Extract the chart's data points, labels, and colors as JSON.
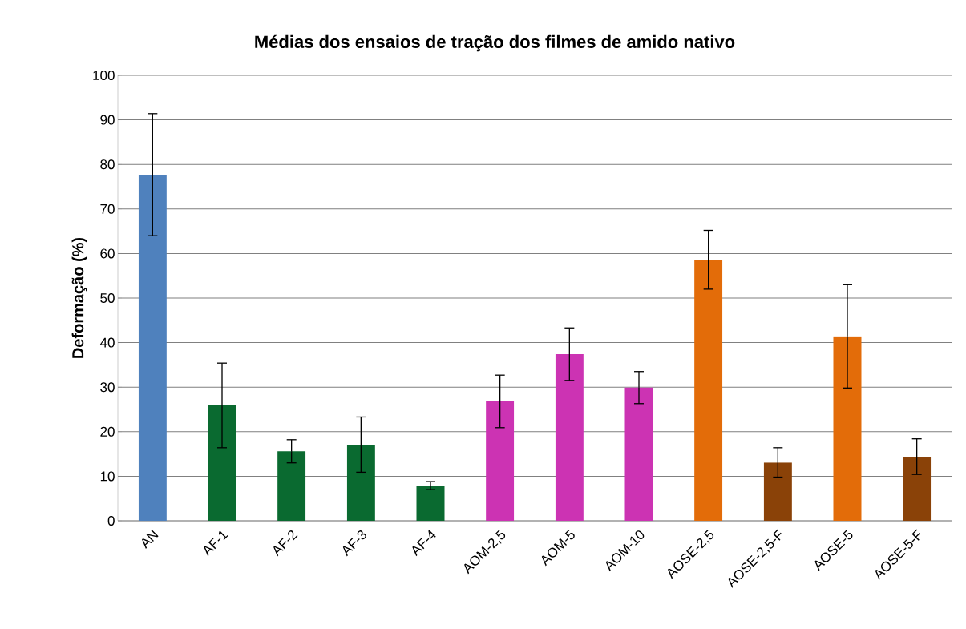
{
  "chart_data": {
    "type": "bar",
    "title": "Médias dos ensaios de tração dos filmes de amido nativo",
    "ylabel": "Deformação (%)",
    "categories": [
      "AN",
      "AF-1",
      "AF-2",
      "AF-3",
      "AF-4",
      "AOM-2,5",
      "AOM-5",
      "AOM-10",
      "AOSE-2,5",
      "AOSE-2,5-F",
      "AOSE-5",
      "AOSE-5-F"
    ],
    "values": [
      77.7,
      25.9,
      15.6,
      17.1,
      7.9,
      26.8,
      37.4,
      29.9,
      58.6,
      13.1,
      41.4,
      14.4
    ],
    "errors": [
      13.7,
      9.5,
      2.6,
      6.2,
      0.9,
      5.9,
      5.9,
      3.6,
      6.6,
      3.3,
      11.6,
      4.0
    ],
    "colors": [
      "#4f81bd",
      "#0a6a30",
      "#0a6a30",
      "#0a6a30",
      "#0a6a30",
      "#cc33b3",
      "#cc33b3",
      "#cc33b3",
      "#e36c09",
      "#8a4208",
      "#e36c09",
      "#8a4208"
    ],
    "ylim": [
      0,
      100
    ],
    "yticks": [
      0,
      10,
      20,
      30,
      40,
      50,
      60,
      70,
      80,
      90,
      100
    ],
    "grid": "y",
    "legend": false
  }
}
